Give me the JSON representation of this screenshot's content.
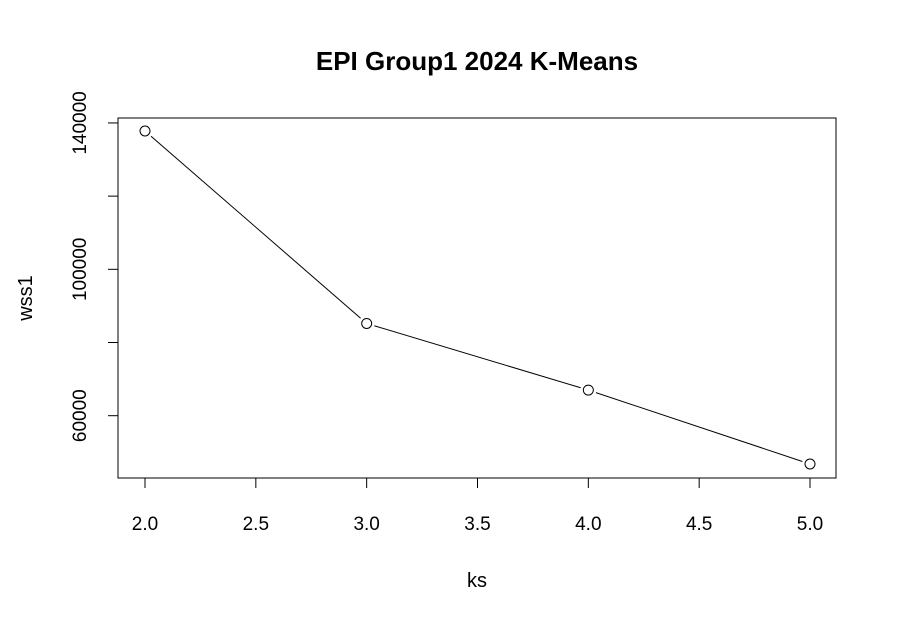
{
  "chart_data": {
    "type": "line",
    "title": "EPI Group1 2024 K-Means",
    "xlabel": "ks",
    "ylabel": "wss1",
    "x": [
      2,
      3,
      4,
      5
    ],
    "series": [
      {
        "values": [
          137800,
          85200,
          67000,
          46800
        ]
      }
    ],
    "xlim": [
      2,
      5
    ],
    "ylim": [
      46800,
      137800
    ],
    "xticks": [
      2.0,
      2.5,
      3.0,
      3.5,
      4.0,
      4.5,
      5.0
    ],
    "xtick_labels": [
      "2.0",
      "2.5",
      "3.0",
      "3.5",
      "4.0",
      "4.5",
      "5.0"
    ],
    "yticks": [
      60000,
      80000,
      100000,
      120000,
      140000
    ],
    "ytick_labels": [
      "60000",
      "",
      "100000",
      "",
      "140000"
    ],
    "grid": false,
    "legend": "none",
    "marker": "open-circle",
    "line_color": "#000000"
  }
}
